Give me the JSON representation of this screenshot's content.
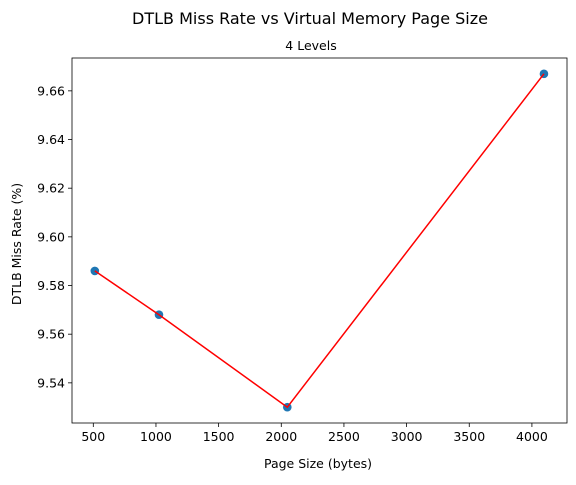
{
  "chart_data": {
    "type": "scatter",
    "title": "DTLB Miss Rate vs Virtual Memory Page Size",
    "subtitle": "4 Levels",
    "xlabel": "Page Size (bytes)",
    "ylabel": "DTLB Miss Rate (%)",
    "x": [
      512,
      1024,
      2048,
      4096
    ],
    "y": [
      9.586,
      9.568,
      9.53,
      9.667
    ],
    "xlim": [
      330,
      4280
    ],
    "ylim": [
      9.5235,
      9.6735
    ],
    "xticks": [
      500,
      1000,
      1500,
      2000,
      2500,
      3000,
      3500,
      4000
    ],
    "xtick_labels": [
      "500",
      "1000",
      "1500",
      "2000",
      "2500",
      "3000",
      "3500",
      "4000"
    ],
    "yticks": [
      9.54,
      9.56,
      9.58,
      9.6,
      9.62,
      9.64,
      9.66
    ],
    "ytick_labels": [
      "9.54",
      "9.56",
      "9.58",
      "9.60",
      "9.62",
      "9.64",
      "9.66"
    ],
    "grid": false,
    "marker_color": "#1f77b4",
    "line_color": "#ff0000",
    "has_connecting_line": true
  }
}
